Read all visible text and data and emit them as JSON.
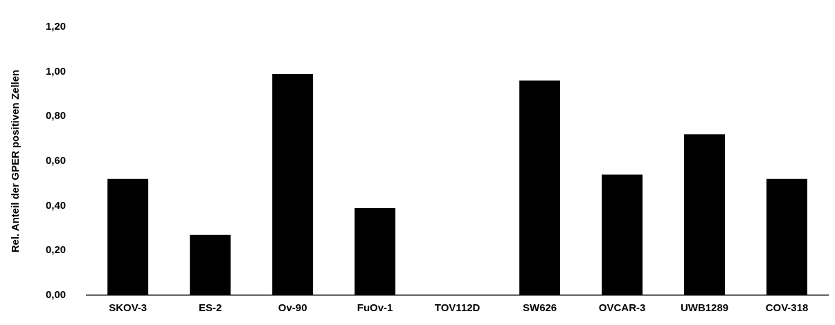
{
  "chart_data": {
    "type": "bar",
    "ylabel": "Rel. Anteil der GPER positiven Zellen",
    "categories": [
      "SKOV-3",
      "ES-2",
      "Ov-90",
      "FuOv-1",
      "TOV112D",
      "SW626",
      "OVCAR-3",
      "UWB1289",
      "COV-318"
    ],
    "values": [
      0.52,
      0.27,
      0.99,
      0.39,
      0,
      0.96,
      0.54,
      0.72,
      0.52
    ],
    "color": "#000000",
    "ylim": [
      0,
      1.2
    ],
    "yticks": [
      {
        "value": 0,
        "label": "0,00"
      },
      {
        "value": 0.2,
        "label": "0,20"
      },
      {
        "value": 0.4,
        "label": "0,40"
      },
      {
        "value": 0.6,
        "label": "0,60"
      },
      {
        "value": 0.8,
        "label": "0,80"
      },
      {
        "value": 1,
        "label": "1,00"
      },
      {
        "value": 1.2,
        "label": "1,20"
      }
    ],
    "grid": false,
    "legend": false
  }
}
